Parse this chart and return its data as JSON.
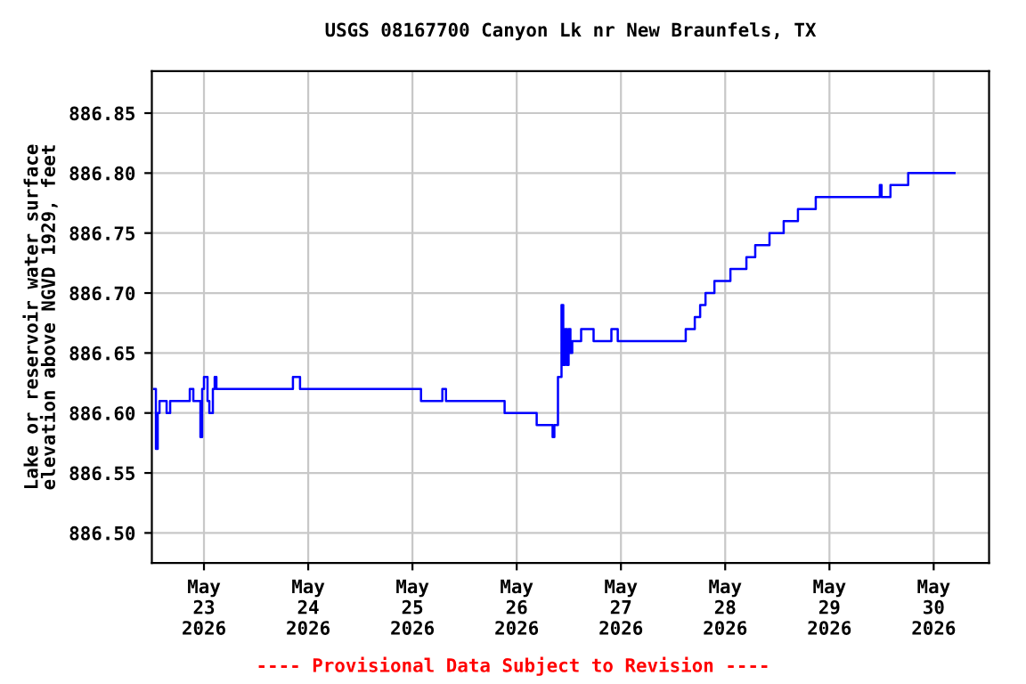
{
  "chart_data": {
    "type": "step",
    "title": "USGS 08167700 Canyon Lk nr New Braunfels, TX",
    "ylabel": "Lake or reservoir water surface\nelevation above NGVD 1929, feet",
    "annotations": [
      "---- Provisional Data Subject to Revision ----"
    ],
    "x": [
      "2026-05-22T12:32",
      "2026-05-22T12:56",
      "2026-05-22T13:21",
      "2026-05-22T13:46",
      "2026-05-22T15:24",
      "2026-05-22T16:13",
      "2026-05-22T20:44",
      "2026-05-22T21:33",
      "2026-05-22T23:11",
      "2026-05-22T23:35",
      "2026-05-23T00:00",
      "2026-05-23T00:49",
      "2026-05-23T01:14",
      "2026-05-23T02:03",
      "2026-05-23T02:28",
      "2026-05-23T02:52",
      "2026-05-23T20:29",
      "2026-05-23T22:07",
      "2026-05-25T01:58",
      "2026-05-25T06:53",
      "2026-05-25T07:43",
      "2026-05-25T21:13",
      "2026-05-26T04:36",
      "2026-05-26T08:16",
      "2026-05-26T08:40",
      "2026-05-26T09:30",
      "2026-05-26T10:19",
      "2026-05-26T10:43",
      "2026-05-26T11:08",
      "2026-05-26T11:33",
      "2026-05-26T11:57",
      "2026-05-26T12:22",
      "2026-05-26T12:47",
      "2026-05-26T13:11",
      "2026-05-26T14:50",
      "2026-05-26T17:42",
      "2026-05-26T21:48",
      "2026-05-26T23:16",
      "2026-05-27T14:55",
      "2026-05-27T17:00",
      "2026-05-27T18:14",
      "2026-05-27T19:28",
      "2026-05-27T21:31",
      "2026-05-28T01:12",
      "2026-05-28T04:53",
      "2026-05-28T06:55",
      "2026-05-28T10:12",
      "2026-05-28T13:28",
      "2026-05-28T16:45",
      "2026-05-28T20:51",
      "2026-05-29T11:36",
      "2026-05-29T12:00",
      "2026-05-29T14:03",
      "2026-05-29T18:08",
      "2026-05-30T04:48"
    ],
    "series": [
      {
        "color": "#0000ff",
        "values": [
          886.62,
          886.57,
          886.6,
          886.61,
          886.6,
          886.61,
          886.62,
          886.61,
          886.58,
          886.62,
          886.63,
          886.61,
          886.6,
          886.62,
          886.63,
          886.62,
          886.63,
          886.62,
          886.61,
          886.62,
          886.61,
          886.6,
          886.59,
          886.58,
          886.59,
          886.63,
          886.69,
          886.64,
          886.67,
          886.64,
          886.67,
          886.65,
          886.66,
          886.66,
          886.67,
          886.66,
          886.67,
          886.66,
          886.67,
          886.68,
          886.69,
          886.7,
          886.71,
          886.72,
          886.73,
          886.74,
          886.75,
          886.76,
          886.77,
          886.78,
          886.79,
          886.78,
          886.79,
          886.8,
          886.8
        ]
      }
    ],
    "xlim": [
      "2026-05-22T12:00",
      "2026-05-30T12:45"
    ],
    "xticks": [
      {
        "value": "2026-05-23",
        "label": "May\n23\n2026"
      },
      {
        "value": "2026-05-24",
        "label": "May\n24\n2026"
      },
      {
        "value": "2026-05-25",
        "label": "May\n25\n2026"
      },
      {
        "value": "2026-05-26",
        "label": "May\n26\n2026"
      },
      {
        "value": "2026-05-27",
        "label": "May\n27\n2026"
      },
      {
        "value": "2026-05-28",
        "label": "May\n28\n2026"
      },
      {
        "value": "2026-05-29",
        "label": "May\n29\n2026"
      },
      {
        "value": "2026-05-30",
        "label": "May\n30\n2026"
      }
    ],
    "ylim": [
      886.475,
      886.885
    ],
    "yticks": [
      {
        "value": 886.5,
        "label": "886.50"
      },
      {
        "value": 886.55,
        "label": "886.55"
      },
      {
        "value": 886.6,
        "label": "886.60"
      },
      {
        "value": 886.65,
        "label": "886.65"
      },
      {
        "value": 886.7,
        "label": "886.70"
      },
      {
        "value": 886.75,
        "label": "886.75"
      },
      {
        "value": 886.8,
        "label": "886.80"
      },
      {
        "value": 886.85,
        "label": "886.85"
      }
    ],
    "grid": true,
    "legend": false
  }
}
